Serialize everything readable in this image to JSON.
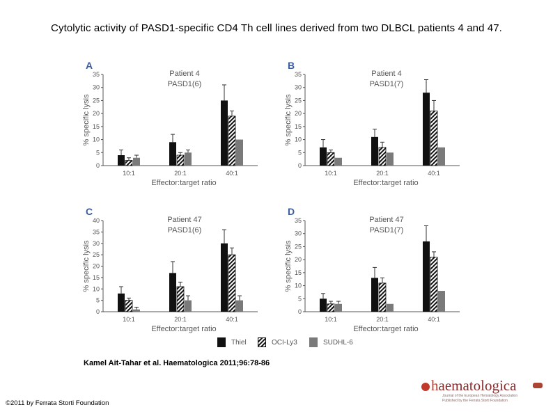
{
  "title": "Cytolytic activity of PASD1-specific CD4 Th cell lines derived from two DLBCL patients 4 and 47.",
  "citation": "Kamel Ait-Tahar et al. Haematologica 2011;96:78-86",
  "copyright": "©2011 by Ferrata Storti Foundation",
  "logo": {
    "word_first": "h",
    "word_rest": "aematologica",
    "line1": "Journal of the European Hematology Association",
    "line2": "Published by the Ferrata Storti Foundation"
  },
  "colors": {
    "thiel": "#111111",
    "sudhl": "#7a7a7a",
    "axis": "#555555",
    "panel_letter": "#3b5ba0"
  },
  "legend": [
    {
      "label": "Thiel",
      "fill": "solid-black"
    },
    {
      "label": "OCI-Ly3",
      "fill": "hatched"
    },
    {
      "label": "SUDHL-6",
      "fill": "solid-gray"
    }
  ],
  "chart_data": [
    {
      "type": "bar",
      "panel": "A",
      "title_line1": "Patient 4",
      "title_line2": "PASD1(6)",
      "xlabel": "Effector:target ratio",
      "ylabel": "% specific lysis",
      "ylim": [
        0,
        35
      ],
      "yticks": [
        "0",
        "5",
        "10",
        "15",
        "20",
        "25",
        "30",
        "35"
      ],
      "categories": [
        "10:1",
        "20:1",
        "40:1"
      ],
      "series": [
        {
          "name": "Thiel",
          "values": [
            4,
            9,
            25
          ],
          "errors": [
            2,
            3,
            6
          ]
        },
        {
          "name": "OCI-Ly3",
          "values": [
            2,
            4,
            19
          ],
          "errors": [
            1,
            1,
            2
          ]
        },
        {
          "name": "SUDHL-6",
          "values": [
            3,
            5,
            10
          ],
          "errors": [
            1,
            1,
            0
          ]
        }
      ]
    },
    {
      "type": "bar",
      "panel": "B",
      "title_line1": "Patient 4",
      "title_line2": "PASD1(7)",
      "xlabel": "Effector:target ratio",
      "ylabel": "% specific lysis",
      "ylim": [
        0,
        35
      ],
      "yticks": [
        "0",
        "5",
        "10",
        "15",
        "20",
        "25",
        "30",
        "35"
      ],
      "categories": [
        "10:1",
        "20:1",
        "40:1"
      ],
      "series": [
        {
          "name": "Thiel",
          "values": [
            7,
            11,
            28
          ],
          "errors": [
            3,
            3,
            5
          ]
        },
        {
          "name": "OCI-Ly3",
          "values": [
            5,
            7,
            21
          ],
          "errors": [
            1,
            2,
            4
          ]
        },
        {
          "name": "SUDHL-6",
          "values": [
            3,
            5,
            7
          ],
          "errors": [
            0,
            0,
            0
          ]
        }
      ]
    },
    {
      "type": "bar",
      "panel": "C",
      "title_line1": "Patient 47",
      "title_line2": "PASD1(6)",
      "xlabel": "Effector:target ratio",
      "ylabel": "% specific lysis",
      "ylim": [
        0,
        40
      ],
      "yticks": [
        "0",
        "5",
        "10",
        "15",
        "20",
        "25",
        "30",
        "35",
        "40"
      ],
      "categories": [
        "10:1",
        "20:1",
        "40:1"
      ],
      "series": [
        {
          "name": "Thiel",
          "values": [
            8,
            17,
            30
          ],
          "errors": [
            3,
            5,
            6
          ]
        },
        {
          "name": "OCI-Ly3",
          "values": [
            5,
            11,
            25
          ],
          "errors": [
            1,
            2,
            3
          ]
        },
        {
          "name": "SUDHL-6",
          "values": [
            1,
            5,
            5
          ],
          "errors": [
            1,
            2,
            2
          ]
        }
      ]
    },
    {
      "type": "bar",
      "panel": "D",
      "title_line1": "Patient 47",
      "title_line2": "PASD1(7)",
      "xlabel": "Effector:target ratio",
      "ylabel": "% specific lysis",
      "ylim": [
        0,
        35
      ],
      "yticks": [
        "0",
        "5",
        "10",
        "15",
        "20",
        "25",
        "30",
        "35"
      ],
      "categories": [
        "10:1",
        "20:1",
        "40:1"
      ],
      "series": [
        {
          "name": "Thiel",
          "values": [
            5,
            13,
            27
          ],
          "errors": [
            2,
            4,
            6
          ]
        },
        {
          "name": "OCI-Ly3",
          "values": [
            3,
            11,
            21
          ],
          "errors": [
            1,
            2,
            2
          ]
        },
        {
          "name": "SUDHL-6",
          "values": [
            3,
            3,
            8
          ],
          "errors": [
            1,
            0,
            0
          ]
        }
      ]
    }
  ]
}
